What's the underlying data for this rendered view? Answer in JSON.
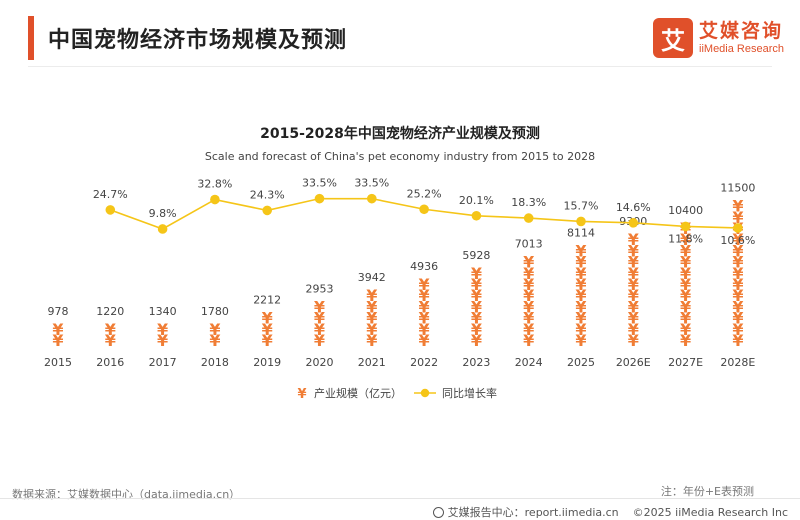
{
  "header": {
    "title": "中国宠物经济市场规模及预测",
    "logo_mark": "艾",
    "logo_cn": "艾媒咨询",
    "logo_en": "iiMedia Research"
  },
  "footer": {
    "source": "数据来源：艾媒数据中心（data.iimedia.cn）",
    "note": "注：年份+E表预测",
    "report_site": "艾媒报告中心：report.iimedia.cn",
    "copyright": "©2025  iiMedia Research  Inc"
  },
  "colors": {
    "accent": "#e0502a",
    "bar": "#f07d35",
    "line": "#f5c518"
  },
  "chart_data": {
    "type": "bar",
    "title": "2015-2028年中国宠物经济产业规模及预测",
    "subtitle": "Scale and forecast of China's pet economy industry from 2015 to 2028",
    "categories": [
      "2015",
      "2016",
      "2017",
      "2018",
      "2019",
      "2020",
      "2021",
      "2022",
      "2023",
      "2024",
      "2025",
      "2026E",
      "2027E",
      "2028E"
    ],
    "series": [
      {
        "name": "产业规模（亿元）",
        "type": "bar",
        "values": [
          978,
          1220,
          1340,
          1780,
          2212,
          2953,
          3942,
          4936,
          5928,
          7013,
          8114,
          9300,
          10400,
          11500
        ],
        "labels": [
          "978",
          "1220",
          "1340",
          "1780",
          "2212",
          "2953",
          "3942",
          "4936",
          "5928",
          "7013",
          "8114",
          "9300",
          "10400",
          "11500"
        ]
      },
      {
        "name": "同比增长率",
        "type": "line",
        "values": [
          null,
          24.7,
          9.8,
          32.8,
          24.3,
          33.5,
          33.5,
          25.2,
          20.1,
          18.3,
          15.7,
          14.6,
          11.8,
          10.6
        ],
        "labels": [
          "",
          "24.7%",
          "9.8%",
          "32.8%",
          "24.3%",
          "33.5%",
          "33.5%",
          "25.2%",
          "20.1%",
          "18.3%",
          "15.7%",
          "14.6%",
          "11.8%",
          "10.6%"
        ]
      }
    ],
    "ylim": [
      0,
      11500
    ],
    "legend_position": "bottom-center",
    "grid": false
  }
}
